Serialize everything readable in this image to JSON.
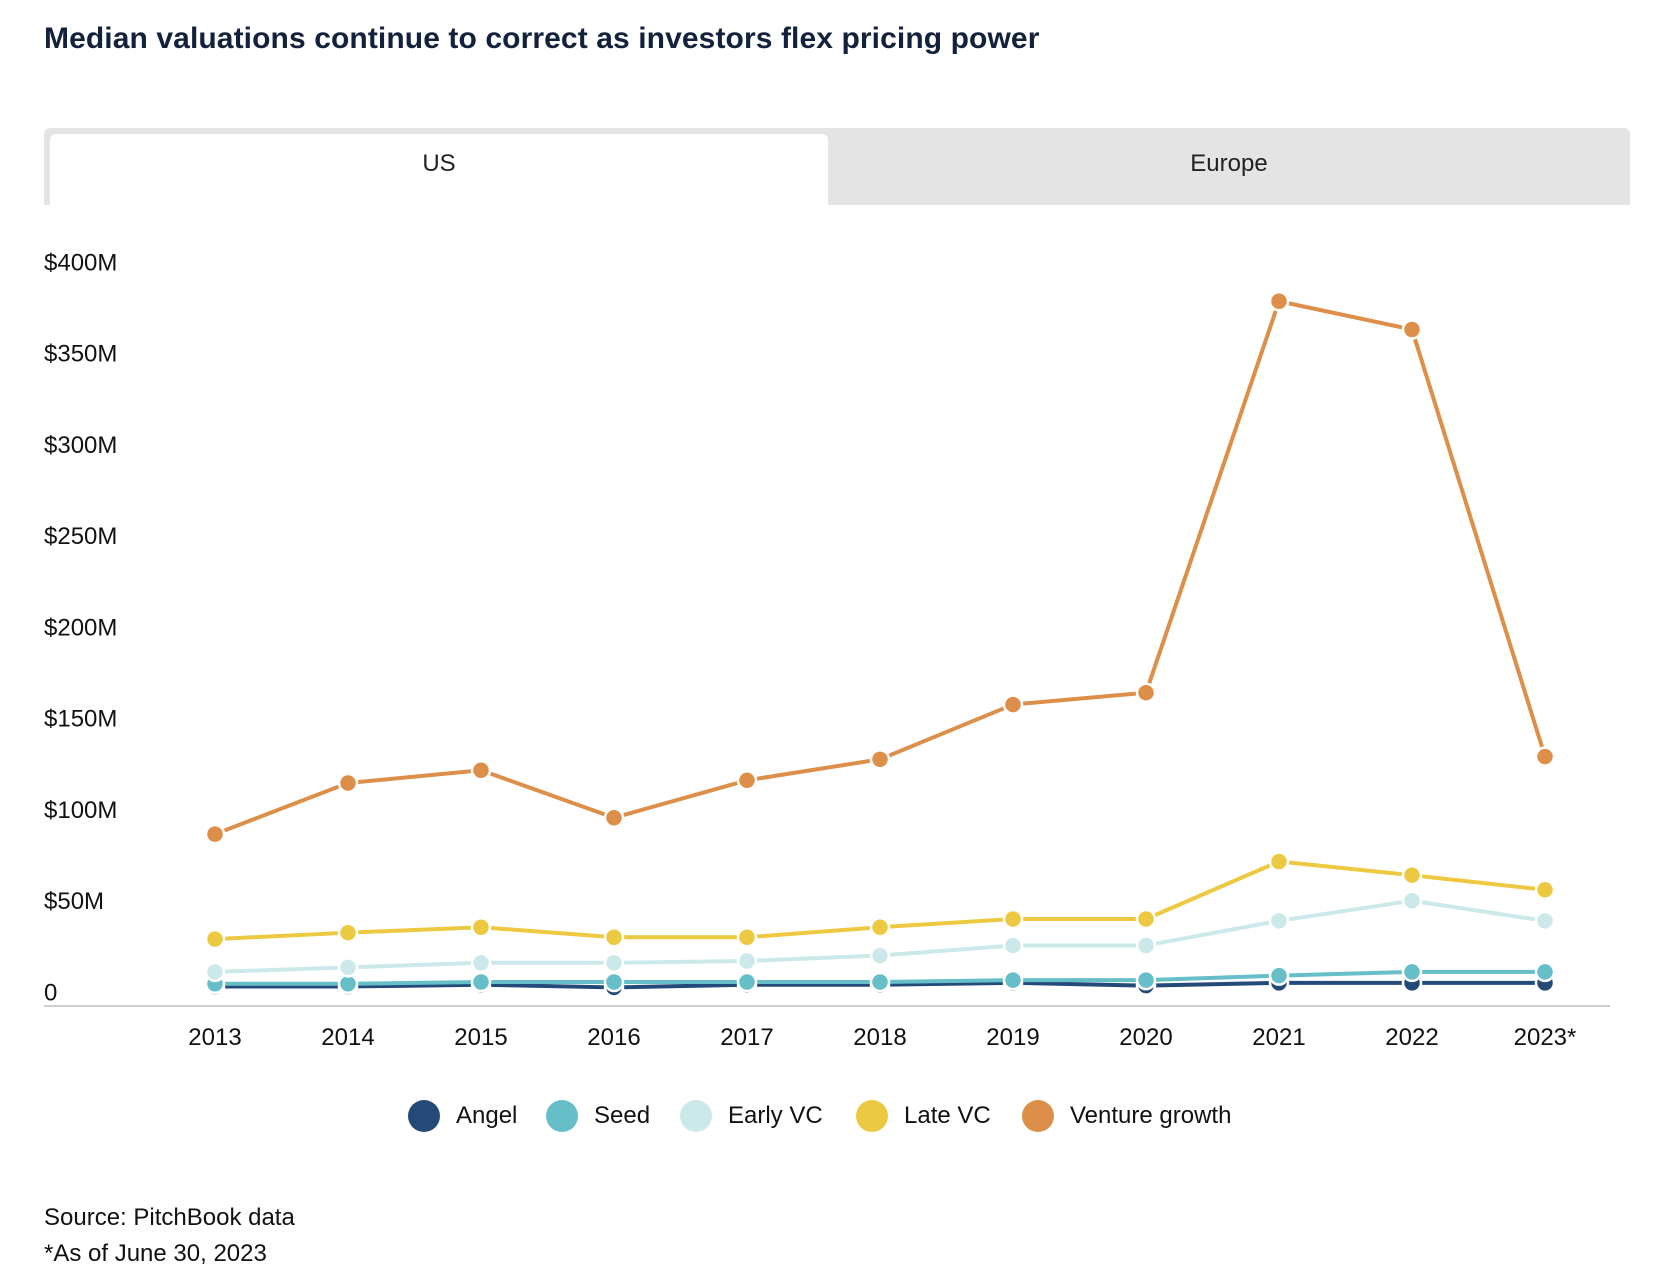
{
  "header": {
    "title": "Median valuations continue to correct as investors flex pricing power"
  },
  "tabs": [
    {
      "label": "US",
      "selected": true
    },
    {
      "label": "Europe",
      "selected": false
    }
  ],
  "chart_data": {
    "type": "line",
    "title": "Median valuations continue to correct as investors flex pricing power",
    "xlabel": "",
    "ylabel": "",
    "categories": [
      "2013",
      "2014",
      "2015",
      "2016",
      "2017",
      "2018",
      "2019",
      "2020",
      "2021",
      "2022",
      "2023*"
    ],
    "y_ticks": [
      0,
      50,
      100,
      150,
      200,
      250,
      300,
      350,
      400
    ],
    "y_tick_labels": [
      "0",
      "$50M",
      "$100M",
      "$150M",
      "$200M",
      "$250M",
      "$300M",
      "$350M",
      "$400M"
    ],
    "ylim": [
      0,
      400
    ],
    "grid": false,
    "legend_position": "bottom-center",
    "series": [
      {
        "name": "Angel",
        "color": "#244a7a",
        "values": [
          3,
          3,
          4,
          2.5,
          4,
          4,
          5,
          3.5,
          5,
          5,
          5
        ]
      },
      {
        "name": "Seed",
        "color": "#66bec8",
        "values": [
          4.5,
          4.5,
          5.5,
          5.5,
          5.5,
          5.5,
          6.5,
          6.5,
          9,
          11,
          11
        ]
      },
      {
        "name": "Early VC",
        "color": "#cbe9ea",
        "values": [
          11,
          13.5,
          16,
          16,
          17,
          20,
          25.5,
          25.5,
          39,
          50,
          39
        ]
      },
      {
        "name": "Late VC",
        "color": "#ecc940",
        "values": [
          29,
          32.5,
          35.5,
          30,
          30,
          35.5,
          40,
          40,
          71.5,
          64,
          56
        ]
      },
      {
        "name": "Venture growth",
        "color": "#dd8f4a",
        "values": [
          86.5,
          114.5,
          121.5,
          95.5,
          116,
          127.5,
          157.5,
          164,
          378.5,
          363,
          129
        ]
      }
    ]
  },
  "footer": {
    "source": "Source: PitchBook data",
    "note": "*As of June 30, 2023"
  }
}
